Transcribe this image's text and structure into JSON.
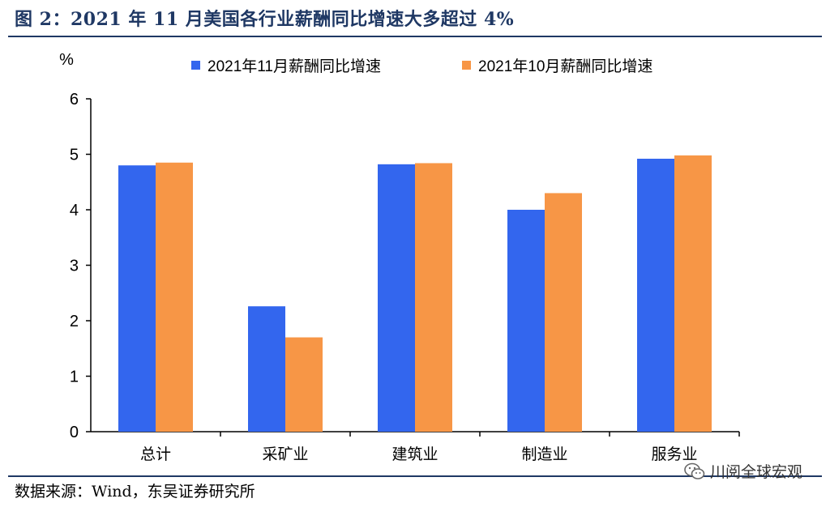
{
  "figure": {
    "title": "图 2：2021 年 11 月美国各行业薪酬同比增速大多超过 4%",
    "source": "数据来源：Wind，东吴证券研究所",
    "watermark": "川阅全球宏观",
    "watermark_icon": "wechat-icon"
  },
  "chart_data": {
    "type": "bar",
    "unit_label": "%",
    "categories": [
      "总计",
      "采矿业",
      "建筑业",
      "制造业",
      "服务业"
    ],
    "series": [
      {
        "name": "2021年11月薪酬同比增速",
        "color": "#3366ee",
        "values": [
          4.8,
          2.26,
          4.82,
          4.0,
          4.92
        ]
      },
      {
        "name": "2021年10月薪酬同比增速",
        "color": "#f79646",
        "values": [
          4.85,
          1.7,
          4.84,
          4.3,
          4.98
        ]
      }
    ],
    "ylim": [
      0,
      6
    ],
    "yticks": [
      0,
      1,
      2,
      3,
      4,
      5,
      6
    ],
    "grid": false,
    "legend_position": "top"
  }
}
